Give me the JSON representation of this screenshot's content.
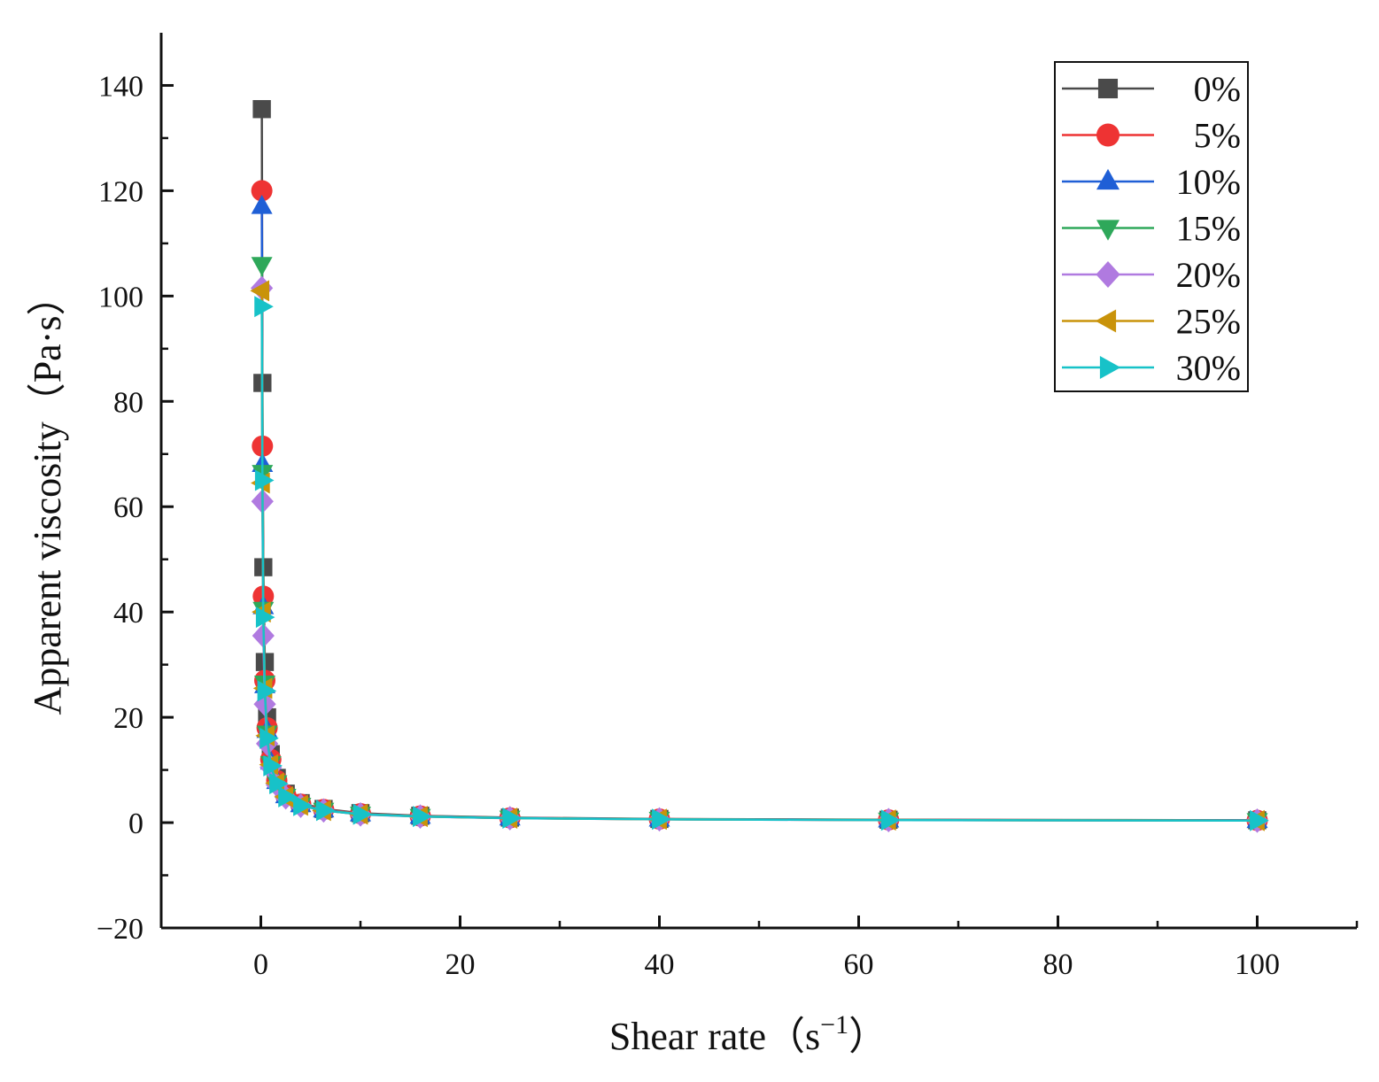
{
  "chart_data": {
    "type": "line",
    "title": "",
    "xlabel": "Shear rate（s",
    "xlabel_sup": "−1",
    "xlabel_close": "）",
    "ylabel": "Apparent viscosity（Pa·s）",
    "xlim": [
      -10,
      110
    ],
    "ylim": [
      -20,
      150
    ],
    "xticks": [
      0,
      20,
      40,
      60,
      80,
      100
    ],
    "yticks": [
      -20,
      0,
      20,
      40,
      60,
      80,
      100,
      120,
      140
    ],
    "legend_position": "top-right",
    "x": [
      0.1,
      0.16,
      0.25,
      0.4,
      0.63,
      1,
      1.6,
      2.5,
      4,
      6.3,
      10,
      16,
      25,
      40,
      63,
      100
    ],
    "series": [
      {
        "name": "0%",
        "color": "#4a4a4a",
        "marker": "square",
        "values": [
          135.5,
          83.5,
          48.5,
          30.5,
          20.0,
          13.0,
          8.5,
          5.5,
          3.7,
          2.6,
          1.8,
          1.3,
          0.95,
          0.7,
          0.55,
          0.45
        ]
      },
      {
        "name": "5%",
        "color": "#ee3333",
        "marker": "circle",
        "values": [
          120.0,
          71.5,
          43.0,
          27.0,
          18.0,
          12.0,
          8.0,
          5.2,
          3.5,
          2.5,
          1.7,
          1.25,
          0.9,
          0.68,
          0.52,
          0.42
        ]
      },
      {
        "name": "10%",
        "color": "#1f5fd6",
        "marker": "triangle-up",
        "values": [
          117.0,
          68.0,
          41.0,
          26.0,
          17.5,
          11.5,
          7.8,
          5.1,
          3.4,
          2.4,
          1.65,
          1.2,
          0.88,
          0.66,
          0.5,
          0.4
        ]
      },
      {
        "name": "15%",
        "color": "#2ea85a",
        "marker": "triangle-down",
        "values": [
          106.0,
          66.5,
          40.5,
          26.5,
          17.0,
          11.2,
          7.6,
          5.0,
          3.3,
          2.35,
          1.6,
          1.18,
          0.86,
          0.64,
          0.49,
          0.39
        ]
      },
      {
        "name": "20%",
        "color": "#b07ae0",
        "marker": "diamond",
        "values": [
          101.5,
          61.0,
          35.5,
          22.5,
          15.0,
          10.5,
          7.2,
          4.8,
          3.2,
          2.3,
          1.55,
          1.15,
          0.84,
          0.62,
          0.48,
          0.38
        ]
      },
      {
        "name": "25%",
        "color": "#c9930a",
        "marker": "triangle-left",
        "values": [
          101.0,
          64.5,
          40.0,
          25.5,
          16.5,
          11.0,
          7.5,
          4.9,
          3.3,
          2.3,
          1.6,
          1.17,
          0.85,
          0.63,
          0.49,
          0.39
        ]
      },
      {
        "name": "30%",
        "color": "#17c2c8",
        "marker": "triangle-right",
        "values": [
          98.0,
          65.0,
          39.0,
          25.0,
          16.0,
          10.8,
          7.4,
          4.9,
          3.25,
          2.3,
          1.58,
          1.16,
          0.85,
          0.63,
          0.48,
          0.38
        ]
      }
    ]
  }
}
